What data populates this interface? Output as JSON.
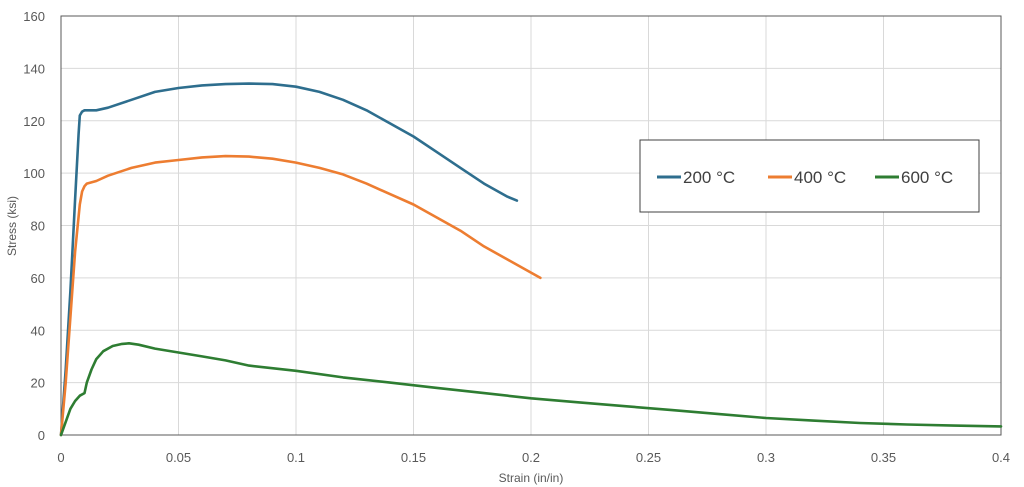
{
  "chart_data": {
    "type": "line",
    "title": "",
    "xlabel": "Strain (in/in)",
    "ylabel": "Stress (ksi)",
    "xlim": [
      0,
      0.4
    ],
    "ylim": [
      0,
      160
    ],
    "x_ticks": [
      "0",
      "0.05",
      "0.1",
      "0.15",
      "0.2",
      "0.25",
      "0.3",
      "0.35",
      "0.4"
    ],
    "y_ticks": [
      "0",
      "20",
      "40",
      "60",
      "80",
      "100",
      "120",
      "140",
      "160"
    ],
    "grid": true,
    "legend_position": "right",
    "series": [
      {
        "name": "200 °C",
        "color": "#2E6E8E",
        "points": [
          [
            0,
            0
          ],
          [
            0.002,
            25
          ],
          [
            0.004,
            55
          ],
          [
            0.006,
            90
          ],
          [
            0.0075,
            115
          ],
          [
            0.008,
            122
          ],
          [
            0.009,
            123.5
          ],
          [
            0.01,
            124
          ],
          [
            0.012,
            124
          ],
          [
            0.015,
            124
          ],
          [
            0.02,
            125
          ],
          [
            0.03,
            128
          ],
          [
            0.04,
            131
          ],
          [
            0.05,
            132.5
          ],
          [
            0.06,
            133.5
          ],
          [
            0.07,
            134
          ],
          [
            0.08,
            134.2
          ],
          [
            0.09,
            134
          ],
          [
            0.1,
            133
          ],
          [
            0.11,
            131
          ],
          [
            0.12,
            128
          ],
          [
            0.13,
            124
          ],
          [
            0.14,
            119
          ],
          [
            0.15,
            114
          ],
          [
            0.16,
            108
          ],
          [
            0.17,
            102
          ],
          [
            0.18,
            96
          ],
          [
            0.19,
            91
          ],
          [
            0.194,
            89.5
          ]
        ]
      },
      {
        "name": "400 °C",
        "color": "#ED7D31",
        "points": [
          [
            0,
            0
          ],
          [
            0.002,
            20
          ],
          [
            0.004,
            45
          ],
          [
            0.006,
            70
          ],
          [
            0.008,
            88
          ],
          [
            0.009,
            93
          ],
          [
            0.01,
            95
          ],
          [
            0.011,
            96
          ],
          [
            0.015,
            97
          ],
          [
            0.02,
            99
          ],
          [
            0.03,
            102
          ],
          [
            0.04,
            104
          ],
          [
            0.05,
            105
          ],
          [
            0.06,
            106
          ],
          [
            0.07,
            106.5
          ],
          [
            0.08,
            106.3
          ],
          [
            0.09,
            105.5
          ],
          [
            0.1,
            104
          ],
          [
            0.11,
            102
          ],
          [
            0.12,
            99.5
          ],
          [
            0.13,
            96
          ],
          [
            0.14,
            92
          ],
          [
            0.15,
            88
          ],
          [
            0.16,
            83
          ],
          [
            0.17,
            78
          ],
          [
            0.18,
            72
          ],
          [
            0.19,
            67
          ],
          [
            0.2,
            62
          ],
          [
            0.204,
            60
          ]
        ]
      },
      {
        "name": "600 °C",
        "color": "#2E7D32",
        "points": [
          [
            0,
            0
          ],
          [
            0.002,
            5
          ],
          [
            0.004,
            10
          ],
          [
            0.006,
            13
          ],
          [
            0.008,
            15
          ],
          [
            0.01,
            16
          ],
          [
            0.011,
            20
          ],
          [
            0.013,
            25
          ],
          [
            0.015,
            29
          ],
          [
            0.018,
            32
          ],
          [
            0.022,
            34
          ],
          [
            0.026,
            34.8
          ],
          [
            0.029,
            35
          ],
          [
            0.033,
            34.5
          ],
          [
            0.04,
            33
          ],
          [
            0.05,
            31.5
          ],
          [
            0.06,
            30
          ],
          [
            0.07,
            28.5
          ],
          [
            0.08,
            26.5
          ],
          [
            0.1,
            24.5
          ],
          [
            0.12,
            22
          ],
          [
            0.14,
            20
          ],
          [
            0.16,
            18
          ],
          [
            0.18,
            16
          ],
          [
            0.2,
            14
          ],
          [
            0.22,
            12.5
          ],
          [
            0.24,
            11
          ],
          [
            0.26,
            9.5
          ],
          [
            0.28,
            8
          ],
          [
            0.3,
            6.5
          ],
          [
            0.32,
            5.5
          ],
          [
            0.34,
            4.6
          ],
          [
            0.36,
            4
          ],
          [
            0.38,
            3.6
          ],
          [
            0.4,
            3.3
          ]
        ]
      }
    ]
  }
}
